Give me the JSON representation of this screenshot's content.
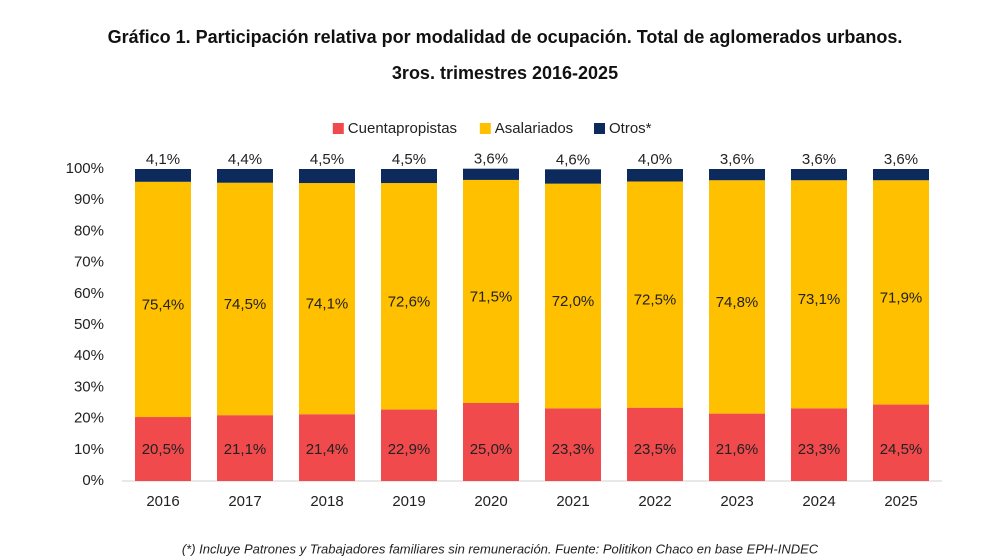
{
  "chart_data": {
    "type": "stacked_bar",
    "title": [
      "Gráfico 1. Participación relativa por modalidad de ocupación. Total de aglomerados urbanos.",
      "3ros. trimestres 2016-2025"
    ],
    "categories": [
      "2016",
      "2017",
      "2018",
      "2019",
      "2020",
      "2021",
      "2022",
      "2023",
      "2024",
      "2025"
    ],
    "series": [
      {
        "name": "Cuentapropistas",
        "color": "#f04a4c",
        "values": [
          20.5,
          21.1,
          21.4,
          22.9,
          25.0,
          23.3,
          23.5,
          21.6,
          23.3,
          24.5
        ],
        "value_labels": [
          "20,5%",
          "21,1%",
          "21,4%",
          "22,9%",
          "25,0%",
          "23,3%",
          "23,5%",
          "21,6%",
          "23,3%",
          "24,5%"
        ]
      },
      {
        "name": "Asalariados",
        "color": "#ffc000",
        "values": [
          75.4,
          74.5,
          74.1,
          72.6,
          71.5,
          72.0,
          72.5,
          74.8,
          73.1,
          71.9
        ],
        "value_labels": [
          "75,4%",
          "74,5%",
          "74,1%",
          "72,6%",
          "71,5%",
          "72,0%",
          "72,5%",
          "74,8%",
          "73,1%",
          "71,9%"
        ]
      },
      {
        "name": "Otros*",
        "color": "#0d2a5c",
        "values": [
          4.1,
          4.4,
          4.5,
          4.5,
          3.6,
          4.6,
          4.0,
          3.6,
          3.6,
          3.6
        ],
        "value_labels": [
          "4,1%",
          "4,4%",
          "4,5%",
          "4,5%",
          "3,6%",
          "4,6%",
          "4,0%",
          "3,6%",
          "3,6%",
          "3,6%"
        ]
      }
    ],
    "ylim": [
      0,
      100
    ],
    "yticks": [
      {
        "value": 0,
        "label": "0%"
      },
      {
        "value": 10,
        "label": "10%"
      },
      {
        "value": 20,
        "label": "20%"
      },
      {
        "value": 30,
        "label": "30%"
      },
      {
        "value": 40,
        "label": "40%"
      },
      {
        "value": 50,
        "label": "50%"
      },
      {
        "value": 60,
        "label": "60%"
      },
      {
        "value": 70,
        "label": "70%"
      },
      {
        "value": 80,
        "label": "80%"
      },
      {
        "value": 90,
        "label": "90%"
      },
      {
        "value": 100,
        "label": "100%"
      }
    ],
    "legend": "top",
    "note": "(*) Incluye Patrones y Trabajadores familiares sin remuneración. Fuente: Politikon Chaco en base EPH-INDEC"
  }
}
